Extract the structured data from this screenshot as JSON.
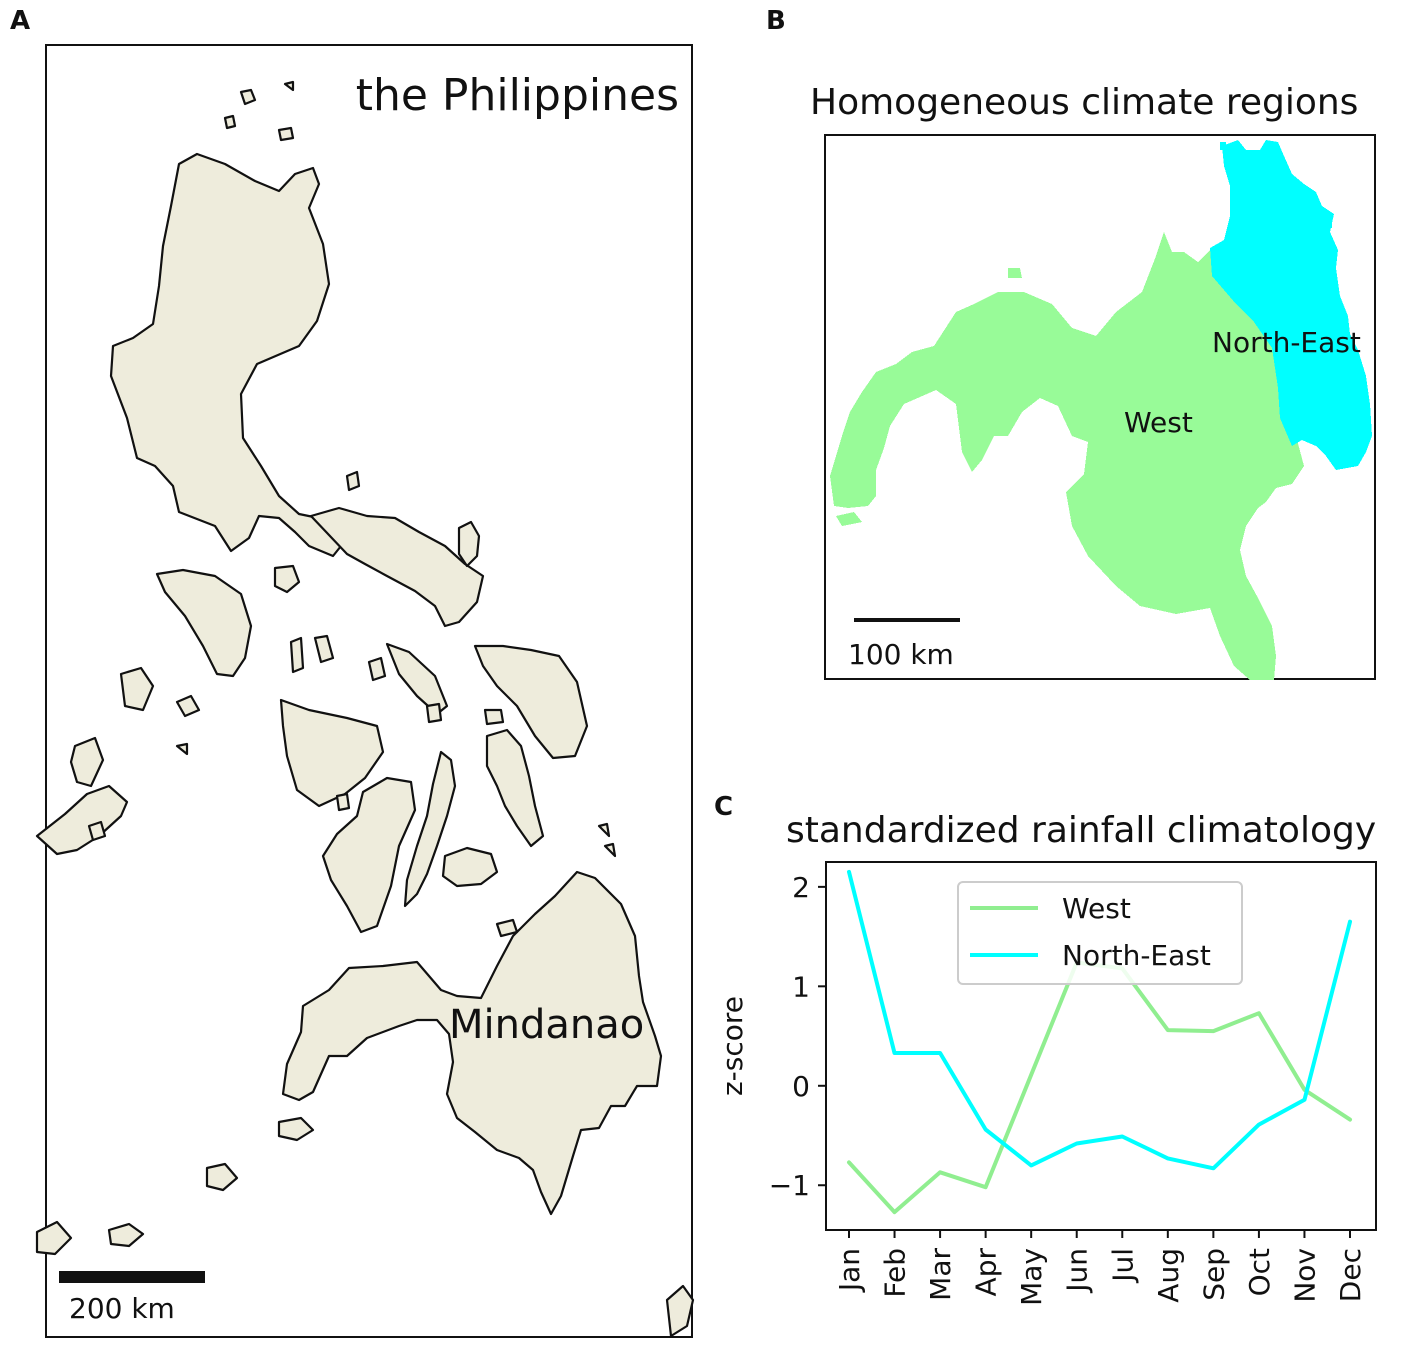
{
  "panels": {
    "a": {
      "letter": "A",
      "title": "the Philippines",
      "region_label": "Mindanao",
      "scalebar_label": "200 km",
      "land_color": "#eeecdc",
      "coast_color": "#111111"
    },
    "b": {
      "letter": "B",
      "title": "Homogeneous climate regions",
      "regions": [
        {
          "name": "West",
          "color": "#98fb98"
        },
        {
          "name": "North-East",
          "color": "#00ffff"
        }
      ],
      "scalebar_label": "100 km"
    },
    "c": {
      "letter": "C",
      "title": "standardized rainfall climatology"
    }
  },
  "chart_data": {
    "type": "line",
    "title": "standardized rainfall climatology",
    "xlabel": "",
    "ylabel": "z-score",
    "categories": [
      "Jan",
      "Feb",
      "Mar",
      "Apr",
      "May",
      "Jun",
      "Jul",
      "Aug",
      "Sep",
      "Oct",
      "Nov",
      "Dec"
    ],
    "yticks": [
      -1,
      0,
      1,
      2
    ],
    "ylim": [
      -1.45,
      2.25
    ],
    "grid": false,
    "legend_position": "top-center",
    "series": [
      {
        "name": "West",
        "color": "#90ee90",
        "values": [
          -0.77,
          -1.27,
          -0.87,
          -1.02,
          0.11,
          1.24,
          1.18,
          0.56,
          0.55,
          0.73,
          -0.04,
          -0.34
        ]
      },
      {
        "name": "North-East",
        "color": "#00ffff",
        "values": [
          2.15,
          0.33,
          0.33,
          -0.44,
          -0.8,
          -0.58,
          -0.51,
          -0.73,
          -0.83,
          -0.39,
          -0.14,
          1.65
        ]
      }
    ]
  }
}
